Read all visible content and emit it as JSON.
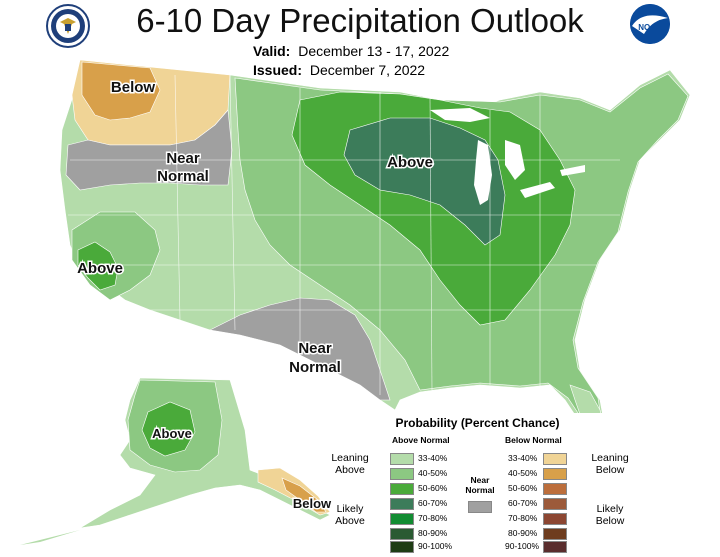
{
  "header": {
    "title": "6-10 Day Precipitation Outlook",
    "valid_label": "Valid:",
    "valid_value": "December 13 - 17, 2022",
    "issued_label": "Issued:",
    "issued_value": "December 7, 2022"
  },
  "map_labels": {
    "below_nw": "Below",
    "near_normal_nw": [
      "Near",
      "Normal"
    ],
    "above_midwest": "Above",
    "above_ca": "Above",
    "near_normal_tx": [
      "Near",
      "Normal"
    ],
    "above_ak": "Above",
    "below_ak": "Below"
  },
  "colors": {
    "above_33_40": "#b4dcaa",
    "above_40_50": "#8cc882",
    "above_50_60": "#4aaa3a",
    "above_60_70": "#3c7c5a",
    "above_70_80": "#128c32",
    "above_80_90": "#2a5a32",
    "above_90_100": "#1e3c14",
    "below_33_40": "#f0d496",
    "below_40_50": "#d8a04a",
    "below_50_60": "#bc6e3c",
    "below_60_70": "#9c5a3a",
    "below_70_80": "#8c4632",
    "below_80_90": "#6e3c1e",
    "below_90_100": "#5a2d2d",
    "near_normal": "#a0a0a0"
  },
  "legend": {
    "title": "Probability (Percent Chance)",
    "above_header": "Above Normal",
    "below_header": "Below Normal",
    "above_items": [
      "33-40%",
      "40-50%",
      "50-60%",
      "60-70%",
      "70-80%",
      "80-90%",
      "90-100%"
    ],
    "below_items": [
      "33-40%",
      "40-50%",
      "50-60%",
      "60-70%",
      "70-80%",
      "80-90%",
      "90-100%"
    ],
    "leaning_above": [
      "Leaning",
      "Above"
    ],
    "likely_above": [
      "Likely",
      "Above"
    ],
    "leaning_below": [
      "Leaning",
      "Below"
    ],
    "likely_below": [
      "Likely",
      "Below"
    ],
    "near_normal": [
      "Near",
      "Normal"
    ]
  },
  "logos": {
    "left": "dept-of-commerce-seal",
    "right": "noaa-logo",
    "right_text": "NOAA"
  }
}
